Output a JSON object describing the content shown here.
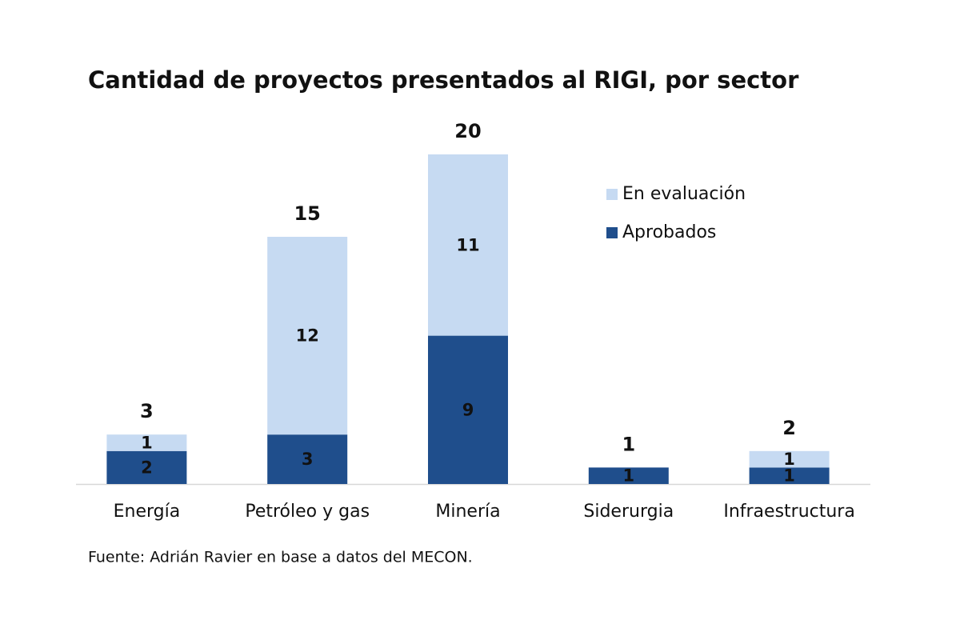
{
  "chart_data": {
    "type": "stacked_bar",
    "title": "Cantidad de proyectos presentados al RIGI, por sector",
    "categories": [
      "Energía",
      "Petróleo y gas",
      "Minería",
      "Siderurgia",
      "Infraestructura"
    ],
    "series": [
      {
        "name": "Aprobados",
        "color": "#1f4e8c",
        "values": [
          2,
          3,
          9,
          1,
          1
        ]
      },
      {
        "name": "En evaluación",
        "color": "#c6daf2",
        "values": [
          1,
          12,
          11,
          0,
          1
        ]
      }
    ],
    "totals": [
      3,
      15,
      20,
      1,
      2
    ],
    "source": "Fuente: Adrián Ravier en base a datos del MECON."
  }
}
